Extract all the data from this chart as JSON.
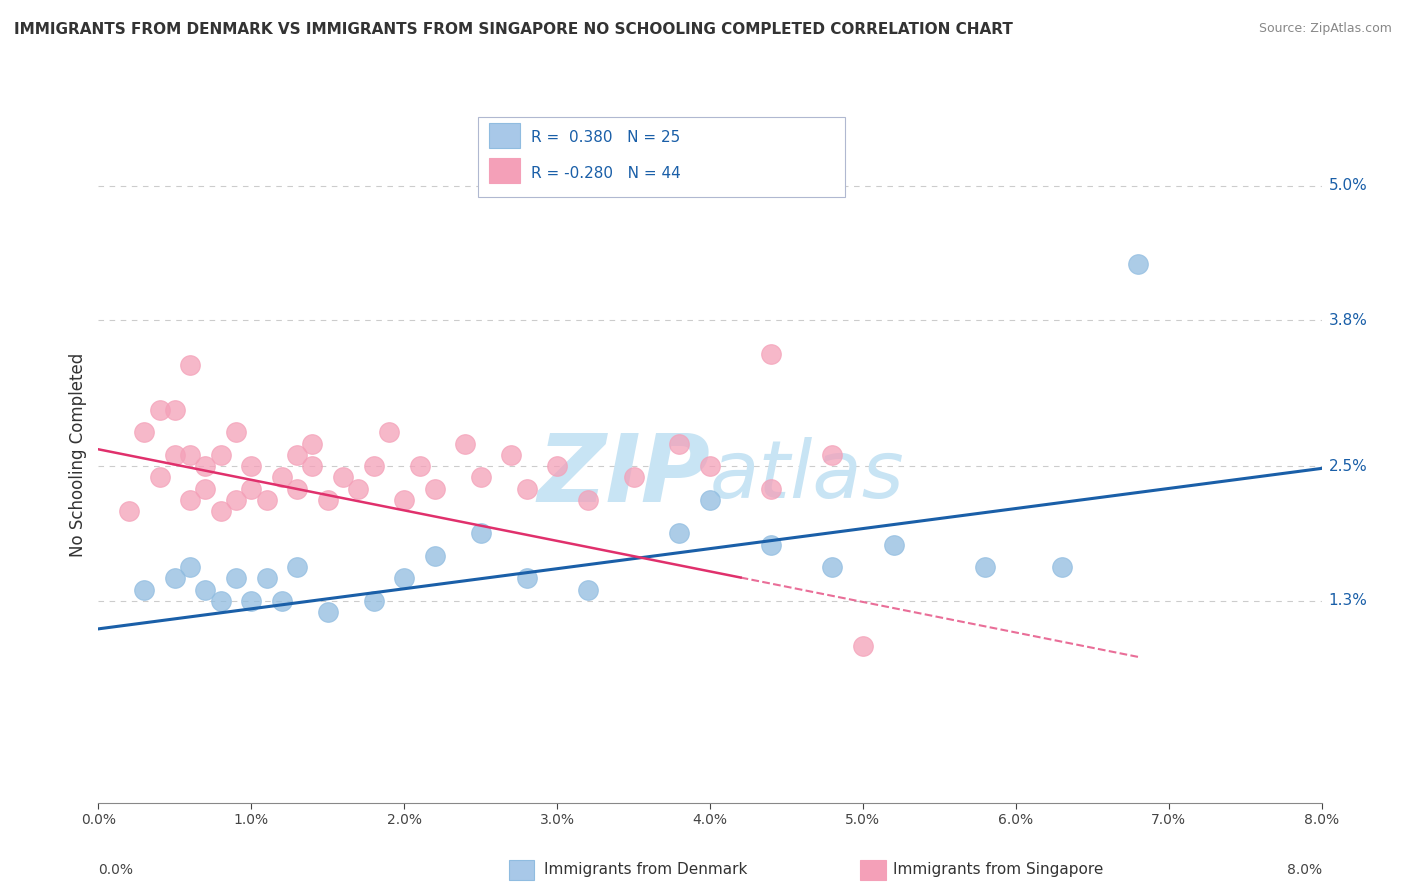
{
  "title": "IMMIGRANTS FROM DENMARK VS IMMIGRANTS FROM SINGAPORE NO SCHOOLING COMPLETED CORRELATION CHART",
  "source": "Source: ZipAtlas.com",
  "ylabel": "No Schooling Completed",
  "xlim": [
    0.0,
    0.08
  ],
  "ylim": [
    -0.005,
    0.057
  ],
  "legend_color1": "#a8c8e8",
  "legend_color2": "#f4a0b8",
  "denmark_color": "#90bce0",
  "singapore_color": "#f4a0b8",
  "denmark_line_color": "#1a5fa8",
  "singapore_line_color": "#e0306c",
  "watermark_color": "#c8e4f4",
  "background_color": "#ffffff",
  "denmark_x": [
    0.003,
    0.005,
    0.006,
    0.007,
    0.008,
    0.009,
    0.01,
    0.011,
    0.012,
    0.013,
    0.015,
    0.018,
    0.02,
    0.022,
    0.025,
    0.028,
    0.032,
    0.038,
    0.04,
    0.044,
    0.048,
    0.052,
    0.058,
    0.063,
    0.068
  ],
  "denmark_y": [
    0.014,
    0.015,
    0.016,
    0.014,
    0.013,
    0.015,
    0.013,
    0.015,
    0.013,
    0.016,
    0.012,
    0.013,
    0.015,
    0.017,
    0.019,
    0.015,
    0.014,
    0.019,
    0.022,
    0.018,
    0.016,
    0.018,
    0.016,
    0.016,
    0.043
  ],
  "singapore_x": [
    0.002,
    0.003,
    0.004,
    0.004,
    0.005,
    0.005,
    0.006,
    0.006,
    0.007,
    0.007,
    0.008,
    0.008,
    0.009,
    0.009,
    0.01,
    0.01,
    0.011,
    0.012,
    0.013,
    0.013,
    0.014,
    0.014,
    0.015,
    0.016,
    0.017,
    0.018,
    0.019,
    0.02,
    0.021,
    0.022,
    0.024,
    0.025,
    0.027,
    0.028,
    0.03,
    0.032,
    0.035,
    0.038,
    0.04,
    0.044,
    0.048,
    0.05,
    0.006,
    0.044
  ],
  "singapore_y": [
    0.021,
    0.028,
    0.024,
    0.03,
    0.026,
    0.03,
    0.022,
    0.026,
    0.023,
    0.025,
    0.026,
    0.021,
    0.022,
    0.028,
    0.023,
    0.025,
    0.022,
    0.024,
    0.023,
    0.026,
    0.025,
    0.027,
    0.022,
    0.024,
    0.023,
    0.025,
    0.028,
    0.022,
    0.025,
    0.023,
    0.027,
    0.024,
    0.026,
    0.023,
    0.025,
    0.022,
    0.024,
    0.027,
    0.025,
    0.023,
    0.026,
    0.009,
    0.034,
    0.035
  ],
  "denmark_line_x": [
    0.0,
    0.08
  ],
  "denmark_line_y": [
    0.0105,
    0.0248
  ],
  "singapore_line_x": [
    0.0,
    0.068
  ],
  "singapore_line_y": [
    0.0265,
    0.008
  ],
  "dot_size": 200,
  "grid_color": "#cccccc",
  "ytick_right_labels": [
    "1.3%",
    "2.5%",
    "3.8%",
    "5.0%"
  ],
  "ytick_right_values": [
    0.013,
    0.025,
    0.038,
    0.05
  ],
  "xtick_values": [
    0.0,
    0.01,
    0.02,
    0.03,
    0.04,
    0.05,
    0.06,
    0.07,
    0.08
  ],
  "xtick_labels": [
    "0.0%",
    "1.0%",
    "2.0%",
    "3.0%",
    "4.0%",
    "5.0%",
    "6.0%",
    "7.0%",
    "8.0%"
  ],
  "legend1_r": "R =  0.380",
  "legend1_n": "N = 25",
  "legend2_r": "R = -0.280",
  "legend2_n": "N = 44",
  "bottom_legend1": "Immigrants from Denmark",
  "bottom_legend2": "Immigrants from Singapore"
}
